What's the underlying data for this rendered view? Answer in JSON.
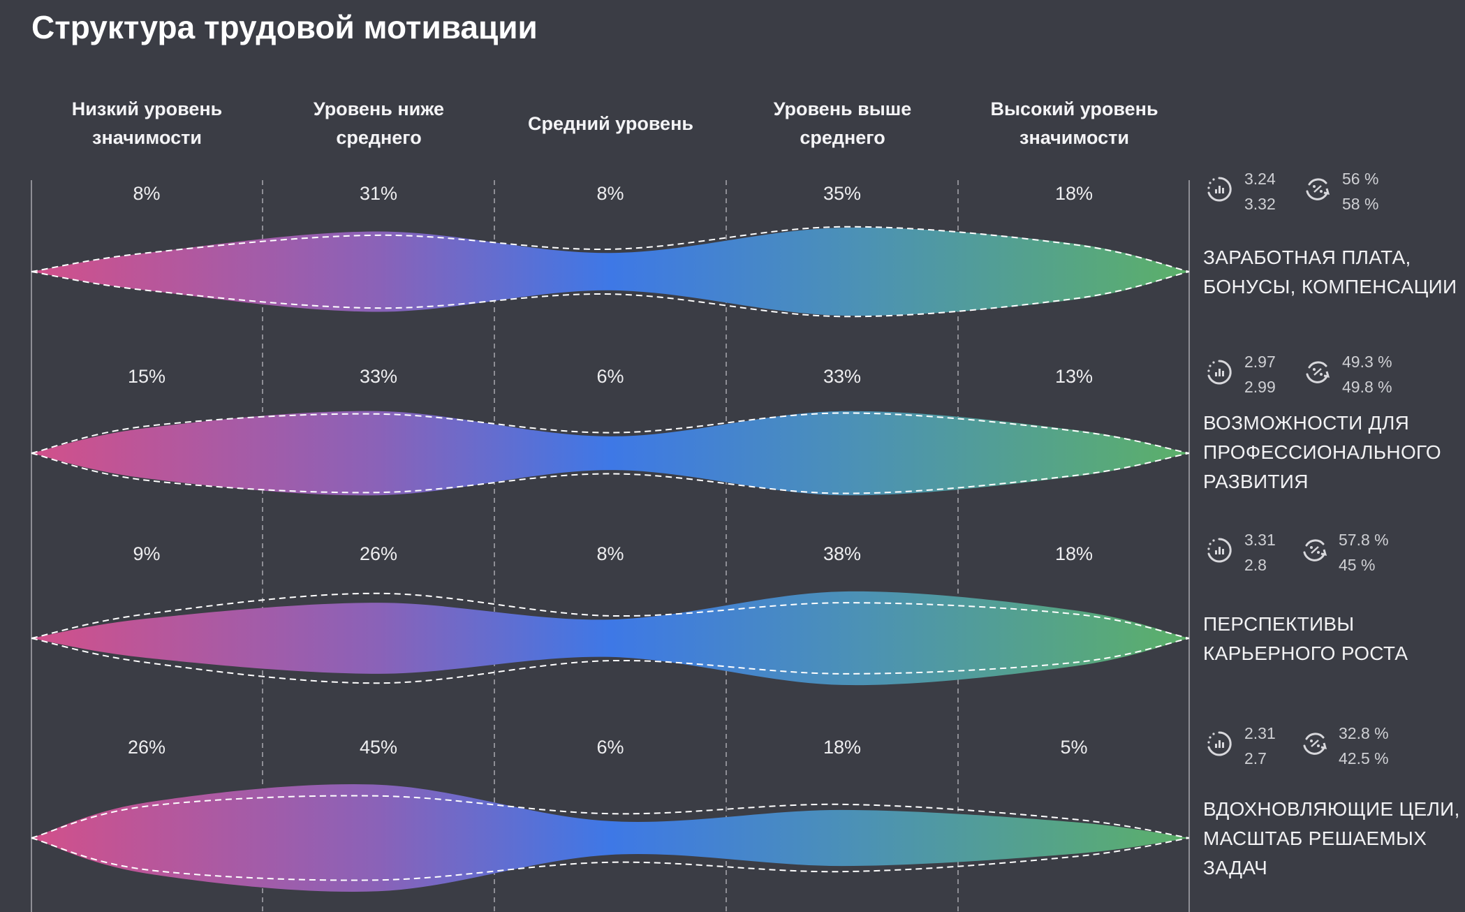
{
  "title": "Структура трудовой мотивации",
  "chart_data": {
    "type": "violin-stream",
    "title": "Структура трудовой мотивации",
    "categories": [
      [
        "Низкий уровень",
        "значимости"
      ],
      [
        "Уровень ниже",
        "среднего"
      ],
      [
        "Средний уровень"
      ],
      [
        "Уровень выше",
        "среднего"
      ],
      [
        "Высокий уровень",
        "значимости"
      ]
    ],
    "colors": {
      "low": "#d2508a",
      "mid_low": "#8a62b8",
      "mid": "#3e78e6",
      "mid_high": "#4c92b4",
      "high": "#5cb068",
      "background": "#3b3d45"
    },
    "rows": [
      {
        "label": [
          "ЗАРАБОТНАЯ ПЛАТА,",
          "БОНУСЫ, КОМПЕНСАЦИИ"
        ],
        "values": [
          8,
          31,
          8,
          35,
          18
        ],
        "value_labels": [
          "8%",
          "31%",
          "8%",
          "35%",
          "18%"
        ],
        "comparison_values": [
          8,
          27,
          12,
          36,
          17
        ],
        "score": [
          "3.24",
          "3.32"
        ],
        "percent": [
          "56 %",
          "58 %"
        ]
      },
      {
        "label": [
          "ВОЗМОЖНОСТИ ДЛЯ",
          "ПРОФЕССИОНАЛЬНОГО",
          "РАЗВИТИЯ"
        ],
        "values": [
          15,
          33,
          6,
          33,
          13
        ],
        "value_labels": [
          "15%",
          "33%",
          "6%",
          "33%",
          "13%"
        ],
        "comparison_values": [
          17,
          30,
          10,
          31,
          12
        ],
        "score": [
          "2.97",
          "2.99"
        ],
        "percent": [
          "49.3 %",
          "49.8 %"
        ]
      },
      {
        "label": [
          "ПЕРСПЕКТИВЫ",
          "КАРЬЕРНОГО РОСТА"
        ],
        "values": [
          9,
          26,
          8,
          38,
          18
        ],
        "value_labels": [
          "9%",
          "26%",
          "8%",
          "38%",
          "18%"
        ],
        "comparison_values": [
          14,
          36,
          12,
          26,
          14
        ],
        "score": [
          "3.31",
          "2.8"
        ],
        "percent": [
          "57.8 %",
          "45 %"
        ]
      },
      {
        "label": [
          "ВДОХНОВЛЯЮЩИЕ ЦЕЛИ,",
          "МАСШТАБ РЕШАЕМЫХ",
          "ЗАДАЧ"
        ],
        "values": [
          26,
          45,
          6,
          18,
          5
        ],
        "value_labels": [
          "26%",
          "45%",
          "6%",
          "18%",
          "5%"
        ],
        "comparison_values": [
          22,
          33,
          14,
          24,
          8
        ],
        "score": [
          "2.31",
          "2.7"
        ],
        "percent": [
          "32.8 %",
          "42.5 %"
        ]
      }
    ],
    "icons": {
      "score": "dotted-circle-bar-chart-icon",
      "percent": "circular-arrows-percent-icon"
    }
  }
}
